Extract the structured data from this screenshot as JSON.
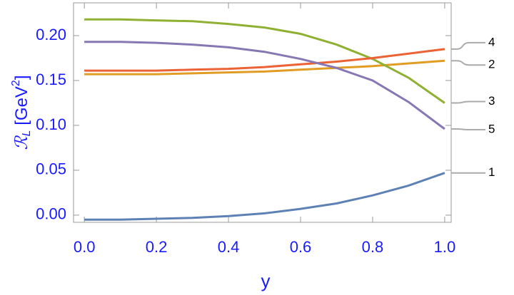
{
  "chart_data": {
    "type": "line",
    "x_label": "y",
    "y_label": [
      "ℛ",
      "L",
      " [GeV",
      "2",
      "]"
    ],
    "x": [
      0,
      0.1,
      0.2,
      0.3,
      0.4,
      0.5,
      0.6,
      0.7,
      0.8,
      0.9,
      1
    ],
    "series": [
      {
        "name": "1",
        "color": "#5e81b5",
        "values": [
          -0.005,
          -0.005,
          -0.004,
          -0.003,
          -0.001,
          0.002,
          0.007,
          0.013,
          0.022,
          0.033,
          0.047
        ]
      },
      {
        "name": "2",
        "color": "#e19c24",
        "values": [
          0.157,
          0.157,
          0.157,
          0.158,
          0.159,
          0.16,
          0.162,
          0.164,
          0.166,
          0.169,
          0.172
        ]
      },
      {
        "name": "3",
        "color": "#8fb032",
        "values": [
          0.218,
          0.218,
          0.217,
          0.216,
          0.213,
          0.209,
          0.202,
          0.19,
          0.174,
          0.153,
          0.125
        ]
      },
      {
        "name": "4",
        "color": "#eb6235",
        "values": [
          0.161,
          0.161,
          0.161,
          0.162,
          0.163,
          0.165,
          0.168,
          0.171,
          0.175,
          0.18,
          0.185
        ]
      },
      {
        "name": "5",
        "color": "#8778b3",
        "values": [
          0.193,
          0.193,
          0.192,
          0.19,
          0.187,
          0.182,
          0.174,
          0.164,
          0.15,
          0.126,
          0.096
        ]
      }
    ],
    "xlim": [
      -0.03,
      1.018
    ],
    "ylim": [
      -0.008,
      0.2365
    ],
    "xticks": [
      {
        "value": 0,
        "label": "0.0"
      },
      0.2,
      0.4,
      0.6,
      0.8,
      {
        "value": 1,
        "label": "1.0"
      }
    ],
    "yticks": [
      {
        "value": 0,
        "label": "0.00"
      },
      {
        "value": 0.05,
        "label": "0.05"
      },
      {
        "value": 0.1,
        "label": "0.10"
      },
      {
        "value": 0.15,
        "label": "0.15"
      },
      {
        "value": 0.2,
        "label": "0.20"
      }
    ]
  }
}
